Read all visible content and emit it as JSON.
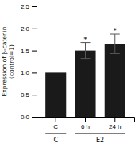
{
  "chart_data": {
    "type": "bar",
    "categories": [
      "C",
      "6 h",
      "24 h"
    ],
    "values": [
      1.0,
      1.5,
      1.65
    ],
    "errors": [
      0.0,
      0.18,
      0.22
    ],
    "color": "#1a1a1a",
    "ylabel": "Expression of β-catenin\n(control=1)",
    "ylim": [
      0,
      2.5
    ],
    "yticks": [
      {
        "value": 0,
        "label": "0.0"
      },
      0.5,
      {
        "value": 1,
        "label": "1.0"
      },
      1.5,
      {
        "value": 2,
        "label": "2.0"
      },
      2.5
    ],
    "annotations": [
      {
        "text": "*",
        "category": "6 h"
      },
      {
        "text": "*",
        "category": "24 h"
      }
    ],
    "groups": [
      {
        "label": "C",
        "categories": [
          "C"
        ]
      },
      {
        "label": "E2",
        "categories": [
          "6 h",
          "24 h"
        ]
      }
    ]
  }
}
